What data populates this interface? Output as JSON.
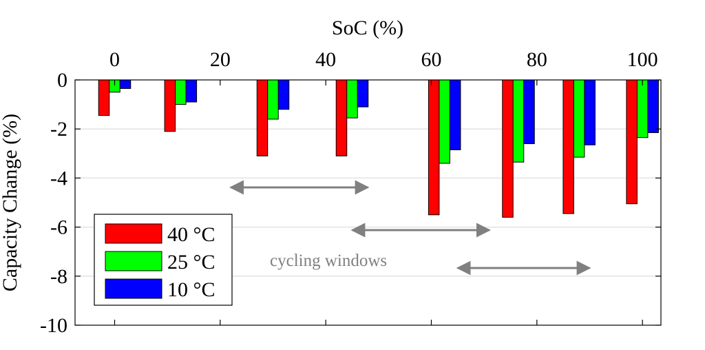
{
  "chart_data": {
    "type": "bar",
    "title": "SoC (%)",
    "xlabel": "SoC (%)",
    "ylabel": "Capacity Change (%)",
    "x_axis_position": "top",
    "xlim": [
      -7.5,
      103.5
    ],
    "ylim": [
      -10,
      0
    ],
    "x_ticks": [
      0,
      20,
      40,
      60,
      80,
      100
    ],
    "x_tick_labels": [
      "0",
      "20",
      "40",
      "60",
      "80",
      "100"
    ],
    "y_ticks": [
      0,
      -2,
      -4,
      -6,
      -8,
      -10
    ],
    "y_tick_labels": [
      "0",
      "-2",
      "-4",
      "-6",
      "-8",
      "-10"
    ],
    "grid": true,
    "legend_position": "bottom-left",
    "group_centers": [
      0,
      12.5,
      30,
      45,
      62.5,
      76.5,
      88,
      100
    ],
    "series": [
      {
        "name": "40 °C",
        "color": "#ff0000",
        "values": [
          -1.45,
          -2.1,
          -3.1,
          -3.1,
          -5.5,
          -5.6,
          -5.45,
          -5.05
        ]
      },
      {
        "name": "25 °C",
        "color": "#00ff00",
        "values": [
          -0.5,
          -1.0,
          -1.6,
          -1.55,
          -3.4,
          -3.35,
          -3.15,
          -2.35
        ]
      },
      {
        "name": "10 °C",
        "color": "#0000ff",
        "values": [
          -0.35,
          -0.9,
          -1.2,
          -1.1,
          -2.85,
          -2.6,
          -2.65,
          -2.15
        ]
      }
    ],
    "annotations": [
      {
        "text": "cycling windows",
        "kind": "label"
      },
      {
        "kind": "double-arrow",
        "from_soc": 22,
        "to_soc": 48
      },
      {
        "kind": "double-arrow",
        "from_soc": 45,
        "to_soc": 71
      },
      {
        "kind": "double-arrow",
        "from_soc": 65,
        "to_soc": 90
      }
    ],
    "annotation_color": "#808080"
  }
}
